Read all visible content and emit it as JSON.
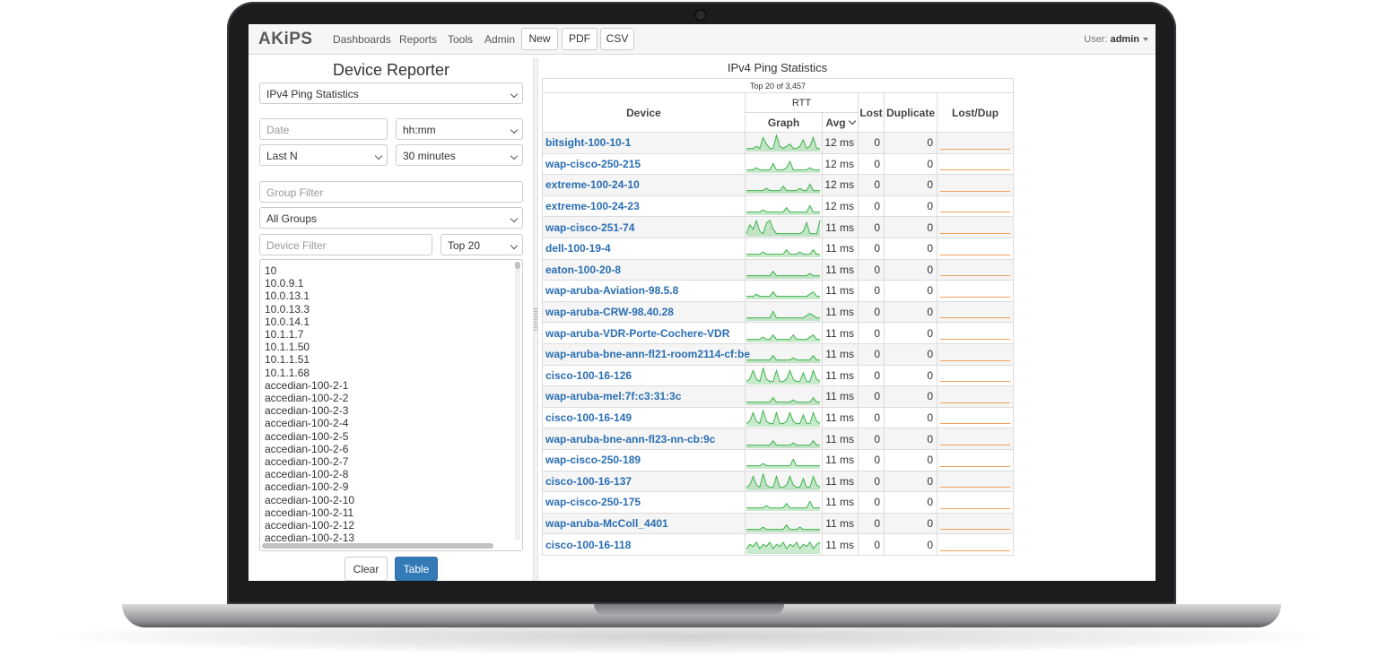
{
  "navbar": {
    "brand": "AKiPS",
    "links": [
      "Dashboards",
      "Reports",
      "Tools",
      "Admin"
    ],
    "buttons": [
      "New",
      "PDF",
      "CSV"
    ],
    "user_label": "User:",
    "user_name": "admin"
  },
  "left": {
    "title": "Device Reporter",
    "report_select": "IPv4 Ping Statistics",
    "date_placeholder": "Date",
    "time_select": "hh:mm",
    "range_select": "Last N",
    "duration_select": "30 minutes",
    "group_filter_placeholder": "Group Filter",
    "group_select": "All Groups",
    "device_filter_placeholder": "Device Filter",
    "top_select": "Top 20",
    "device_list": [
      "10",
      "10.0.9.1",
      "10.0.13.1",
      "10.0.13.3",
      "10.0.14.1",
      "10.1.1.7",
      "10.1.1.50",
      "10.1.1.51",
      "10.1.1.68",
      "accedian-100-2-1",
      "accedian-100-2-2",
      "accedian-100-2-3",
      "accedian-100-2-4",
      "accedian-100-2-5",
      "accedian-100-2-6",
      "accedian-100-2-7",
      "accedian-100-2-8",
      "accedian-100-2-9",
      "accedian-100-2-10",
      "accedian-100-2-11",
      "accedian-100-2-12",
      "accedian-100-2-13"
    ],
    "clear_label": "Clear",
    "table_label": "Table"
  },
  "report": {
    "title": "IPv4 Ping Statistics",
    "subtitle": "Top 20 of 3,457",
    "headers": {
      "device": "Device",
      "rtt": "RTT",
      "graph": "Graph",
      "avg": "Avg",
      "lost": "Lost",
      "duplicate": "Duplicate",
      "lostdup": "Lost/Dup"
    },
    "spark_color": "#3cb44b",
    "lostdup_color": "#f0a05a",
    "rows": [
      {
        "device": "bitsight-100-10-1",
        "avg": "12 ms",
        "lost": "0",
        "duplicate": "0",
        "spark": [
          1,
          1,
          1,
          2,
          1,
          6,
          3,
          1,
          1,
          7,
          2,
          1,
          2,
          3,
          1,
          1,
          2,
          5,
          1,
          2,
          6,
          1,
          1
        ]
      },
      {
        "device": "wap-cisco-250-215",
        "avg": "12 ms",
        "lost": "0",
        "duplicate": "0",
        "spark": [
          1,
          1,
          1,
          2,
          1,
          1,
          1,
          1,
          4,
          1,
          1,
          1,
          2,
          5,
          1,
          1,
          1,
          1,
          1,
          2,
          1,
          1,
          1
        ]
      },
      {
        "device": "extreme-100-24-10",
        "avg": "12 ms",
        "lost": "0",
        "duplicate": "0",
        "spark": [
          1,
          1,
          1,
          1,
          1,
          1,
          2,
          1,
          1,
          1,
          1,
          3,
          1,
          1,
          1,
          1,
          2,
          1,
          1,
          4,
          1,
          1,
          1
        ]
      },
      {
        "device": "extreme-100-24-23",
        "avg": "12 ms",
        "lost": "0",
        "duplicate": "0",
        "spark": [
          1,
          1,
          1,
          1,
          1,
          2,
          1,
          1,
          1,
          1,
          1,
          1,
          3,
          1,
          1,
          1,
          1,
          1,
          1,
          4,
          1,
          1,
          1
        ]
      },
      {
        "device": "wap-cisco-251-74",
        "avg": "11 ms",
        "lost": "0",
        "duplicate": "0",
        "spark": [
          1,
          5,
          3,
          7,
          2,
          1,
          6,
          7,
          3,
          1,
          1,
          1,
          1,
          1,
          1,
          1,
          1,
          2,
          6,
          1,
          1,
          1,
          7
        ]
      },
      {
        "device": "dell-100-19-4",
        "avg": "11 ms",
        "lost": "0",
        "duplicate": "0",
        "spark": [
          1,
          1,
          1,
          1,
          1,
          2,
          1,
          1,
          1,
          1,
          1,
          1,
          3,
          1,
          1,
          1,
          2,
          1,
          1,
          1,
          3,
          1,
          1
        ]
      },
      {
        "device": "eaton-100-20-8",
        "avg": "11 ms",
        "lost": "0",
        "duplicate": "0",
        "spark": [
          1,
          1,
          1,
          1,
          1,
          1,
          1,
          1,
          3,
          1,
          1,
          1,
          1,
          1,
          1,
          1,
          1,
          1,
          1,
          2,
          1,
          1,
          1
        ]
      },
      {
        "device": "wap-aruba-Aviation-98.5.8",
        "avg": "11 ms",
        "lost": "0",
        "duplicate": "0",
        "spark": [
          1,
          1,
          1,
          2,
          1,
          1,
          1,
          1,
          3,
          1,
          1,
          1,
          1,
          1,
          1,
          1,
          1,
          1,
          1,
          2,
          3,
          1,
          1
        ]
      },
      {
        "device": "wap-aruba-CRW-98.40.28",
        "avg": "11 ms",
        "lost": "0",
        "duplicate": "0",
        "spark": [
          1,
          1,
          1,
          1,
          1,
          1,
          1,
          1,
          4,
          1,
          1,
          1,
          1,
          1,
          1,
          1,
          1,
          1,
          2,
          3,
          2,
          1,
          1
        ]
      },
      {
        "device": "wap-aruba-VDR-Porte-Cochere-VDR",
        "avg": "11 ms",
        "lost": "0",
        "duplicate": "0",
        "spark": [
          1,
          1,
          1,
          1,
          1,
          2,
          1,
          1,
          3,
          1,
          1,
          1,
          1,
          1,
          3,
          1,
          1,
          1,
          1,
          2,
          3,
          1,
          1
        ]
      },
      {
        "device": "wap-aruba-bne-ann-fl21-room2114-cf:be",
        "avg": "11 ms",
        "lost": "0",
        "duplicate": "0",
        "spark": [
          1,
          1,
          1,
          1,
          1,
          1,
          1,
          1,
          3,
          1,
          1,
          1,
          1,
          1,
          2,
          1,
          1,
          1,
          1,
          1,
          3,
          1,
          1
        ]
      },
      {
        "device": "cisco-100-16-126",
        "avg": "11 ms",
        "lost": "0",
        "duplicate": "0",
        "spark": [
          1,
          2,
          6,
          2,
          1,
          7,
          2,
          1,
          1,
          6,
          1,
          1,
          2,
          6,
          2,
          1,
          1,
          5,
          1,
          1,
          6,
          2,
          1
        ]
      },
      {
        "device": "wap-aruba-mel:7f:c3:31:3c",
        "avg": "11 ms",
        "lost": "0",
        "duplicate": "0",
        "spark": [
          1,
          1,
          1,
          1,
          1,
          1,
          1,
          1,
          3,
          1,
          1,
          1,
          1,
          1,
          2,
          1,
          1,
          1,
          1,
          1,
          3,
          1,
          1
        ]
      },
      {
        "device": "cisco-100-16-149",
        "avg": "11 ms",
        "lost": "0",
        "duplicate": "0",
        "spark": [
          1,
          2,
          6,
          2,
          1,
          7,
          2,
          1,
          1,
          6,
          1,
          1,
          2,
          6,
          2,
          1,
          1,
          5,
          1,
          1,
          6,
          2,
          1
        ]
      },
      {
        "device": "wap-aruba-bne-ann-fl23-nn-cb:9c",
        "avg": "11 ms",
        "lost": "0",
        "duplicate": "0",
        "spark": [
          1,
          1,
          1,
          1,
          1,
          1,
          1,
          1,
          3,
          1,
          1,
          1,
          1,
          1,
          2,
          1,
          1,
          1,
          1,
          1,
          3,
          1,
          1
        ]
      },
      {
        "device": "wap-cisco-250-189",
        "avg": "11 ms",
        "lost": "0",
        "duplicate": "0",
        "spark": [
          1,
          1,
          1,
          1,
          1,
          2,
          1,
          1,
          1,
          1,
          1,
          1,
          1,
          1,
          4,
          1,
          1,
          1,
          1,
          1,
          1,
          1,
          1
        ]
      },
      {
        "device": "cisco-100-16-137",
        "avg": "11 ms",
        "lost": "0",
        "duplicate": "0",
        "spark": [
          1,
          2,
          6,
          2,
          1,
          7,
          2,
          1,
          1,
          6,
          1,
          1,
          2,
          6,
          2,
          1,
          1,
          5,
          1,
          1,
          6,
          2,
          1
        ]
      },
      {
        "device": "wap-cisco-250-175",
        "avg": "11 ms",
        "lost": "0",
        "duplicate": "0",
        "spark": [
          1,
          1,
          1,
          1,
          1,
          1,
          2,
          1,
          1,
          1,
          1,
          1,
          3,
          1,
          1,
          1,
          1,
          1,
          1,
          4,
          1,
          1,
          1
        ]
      },
      {
        "device": "wap-aruba-McColl_4401",
        "avg": "11 ms",
        "lost": "0",
        "duplicate": "0",
        "spark": [
          1,
          1,
          1,
          1,
          1,
          2,
          1,
          1,
          1,
          1,
          1,
          1,
          3,
          1,
          1,
          1,
          2,
          1,
          1,
          1,
          1,
          1,
          1
        ]
      },
      {
        "device": "cisco-100-16-118",
        "avg": "11 ms",
        "lost": "0",
        "duplicate": "0",
        "spark": [
          2,
          4,
          3,
          5,
          2,
          4,
          3,
          5,
          2,
          4,
          3,
          5,
          2,
          4,
          3,
          5,
          2,
          4,
          3,
          5,
          2,
          4,
          5
        ]
      }
    ]
  }
}
